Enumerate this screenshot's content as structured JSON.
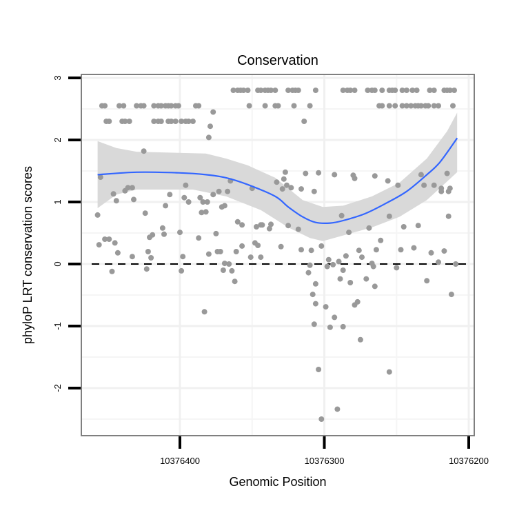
{
  "chart_data": {
    "type": "scatter",
    "title": "Conservation",
    "xlabel": "Genomic Position",
    "ylabel": "phyloP LRT conservation scores",
    "x_reversed": true,
    "xlim": [
      10376200,
      10376460
    ],
    "ylim": [
      -2.6,
      3.05
    ],
    "x_ticks": [
      10376400,
      10376300,
      10376200
    ],
    "x_tick_labels": [
      "10376400",
      "10376300",
      "10376200"
    ],
    "y_ticks": [
      3,
      2,
      1,
      0,
      -1,
      -2
    ],
    "y_tick_labels": [
      "3",
      "2",
      "1",
      "0",
      "-1",
      "-2"
    ],
    "reference_line": 0,
    "grid": true,
    "colors": {
      "points": "#999999",
      "smooth": "#3366ff",
      "ribbon": "#d9d9d9",
      "reference": "#000000",
      "border": "#7f7f7f"
    },
    "points": [
      [
        10376363,
        2.8
      ],
      [
        10376360,
        2.8
      ],
      [
        10376358,
        2.8
      ],
      [
        10376356,
        2.8
      ],
      [
        10376353,
        2.8
      ],
      [
        10376346,
        2.8
      ],
      [
        10376344,
        2.8
      ],
      [
        10376341,
        2.8
      ],
      [
        10376339,
        2.8
      ],
      [
        10376337,
        2.8
      ],
      [
        10376334,
        2.8
      ],
      [
        10376325,
        2.8
      ],
      [
        10376322,
        2.8
      ],
      [
        10376320,
        2.8
      ],
      [
        10376318,
        2.8
      ],
      [
        10376306,
        2.8
      ],
      [
        10376287,
        2.8
      ],
      [
        10376284,
        2.8
      ],
      [
        10376282,
        2.8
      ],
      [
        10376279,
        2.8
      ],
      [
        10376270,
        2.8
      ],
      [
        10376267,
        2.8
      ],
      [
        10376265,
        2.8
      ],
      [
        10376260,
        2.8
      ],
      [
        10376255,
        2.8
      ],
      [
        10376253,
        2.8
      ],
      [
        10376251,
        2.8
      ],
      [
        10376246,
        2.8
      ],
      [
        10376243,
        2.8
      ],
      [
        10376239,
        2.8
      ],
      [
        10376236,
        2.8
      ],
      [
        10376227,
        2.8
      ],
      [
        10376224,
        2.8
      ],
      [
        10376217,
        2.8
      ],
      [
        10376215,
        2.8
      ],
      [
        10376213,
        2.8
      ],
      [
        10376210,
        2.8
      ],
      [
        10376454,
        2.55
      ],
      [
        10376452,
        2.55
      ],
      [
        10376442,
        2.55
      ],
      [
        10376439,
        2.55
      ],
      [
        10376430,
        2.55
      ],
      [
        10376427,
        2.55
      ],
      [
        10376425,
        2.55
      ],
      [
        10376418,
        2.55
      ],
      [
        10376415,
        2.55
      ],
      [
        10376413,
        2.55
      ],
      [
        10376410,
        2.55
      ],
      [
        10376408,
        2.55
      ],
      [
        10376406,
        2.55
      ],
      [
        10376403,
        2.55
      ],
      [
        10376401,
        2.55
      ],
      [
        10376389,
        2.55
      ],
      [
        10376387,
        2.55
      ],
      [
        10376352,
        2.55
      ],
      [
        10376341,
        2.55
      ],
      [
        10376334,
        2.55
      ],
      [
        10376332,
        2.55
      ],
      [
        10376321,
        2.55
      ],
      [
        10376310,
        2.55
      ],
      [
        10376262,
        2.55
      ],
      [
        10376260,
        2.55
      ],
      [
        10376255,
        2.55
      ],
      [
        10376251,
        2.55
      ],
      [
        10376246,
        2.55
      ],
      [
        10376243,
        2.55
      ],
      [
        10376240,
        2.55
      ],
      [
        10376237,
        2.55
      ],
      [
        10376235,
        2.55
      ],
      [
        10376233,
        2.55
      ],
      [
        10376230,
        2.55
      ],
      [
        10376228,
        2.55
      ],
      [
        10376224,
        2.55
      ],
      [
        10376221,
        2.55
      ],
      [
        10376211,
        2.55
      ],
      [
        10376451,
        2.3
      ],
      [
        10376449,
        2.3
      ],
      [
        10376440,
        2.3
      ],
      [
        10376438,
        2.3
      ],
      [
        10376435,
        2.3
      ],
      [
        10376418,
        2.3
      ],
      [
        10376415,
        2.3
      ],
      [
        10376413,
        2.3
      ],
      [
        10376408,
        2.3
      ],
      [
        10376406,
        2.3
      ],
      [
        10376403,
        2.3
      ],
      [
        10376399,
        2.3
      ],
      [
        10376396,
        2.3
      ],
      [
        10376394,
        2.3
      ],
      [
        10376391,
        2.3
      ],
      [
        10376314,
        2.3
      ],
      [
        10376377,
        2.45
      ],
      [
        10376379,
        2.22
      ],
      [
        10376380,
        2.04
      ],
      [
        10376425,
        1.82
      ],
      [
        10376457,
        0.79
      ],
      [
        10376455,
        1.4
      ],
      [
        10376456,
        0.31
      ],
      [
        10376452,
        0.4
      ],
      [
        10376449,
        0.4
      ],
      [
        10376445,
        0.34
      ],
      [
        10376446,
        1.13
      ],
      [
        10376444,
        1.02
      ],
      [
        10376443,
        0.18
      ],
      [
        10376447,
        -0.12
      ],
      [
        10376438,
        1.18
      ],
      [
        10376436,
        1.23
      ],
      [
        10376433,
        1.23
      ],
      [
        10376432,
        1.04
      ],
      [
        10376433,
        0.12
      ],
      [
        10376424,
        0.82
      ],
      [
        10376423,
        -0.08
      ],
      [
        10376422,
        0.2
      ],
      [
        10376420,
        0.1
      ],
      [
        10376421,
        0.43
      ],
      [
        10376419,
        0.47
      ],
      [
        10376412,
        0.58
      ],
      [
        10376411,
        0.48
      ],
      [
        10376410,
        0.94
      ],
      [
        10376407,
        1.12
      ],
      [
        10376400,
        0.51
      ],
      [
        10376399,
        -0.11
      ],
      [
        10376398,
        0.12
      ],
      [
        10376396,
        1.27
      ],
      [
        10376397,
        1.07
      ],
      [
        10376394,
        1.0
      ],
      [
        10376387,
        0.42
      ],
      [
        10376386,
        1.07
      ],
      [
        10376384,
        1.0
      ],
      [
        10376381,
        1.0
      ],
      [
        10376385,
        0.83
      ],
      [
        10376382,
        0.84
      ],
      [
        10376380,
        0.16
      ],
      [
        10376375,
        0.49
      ],
      [
        10376377,
        1.12
      ],
      [
        10376373,
        1.17
      ],
      [
        10376374,
        0.2
      ],
      [
        10376372,
        0.2
      ],
      [
        10376371,
        0.92
      ],
      [
        10376369,
        0.94
      ],
      [
        10376367,
        1.17
      ],
      [
        10376365,
        1.34
      ],
      [
        10376369,
        0.01
      ],
      [
        10376366,
        0.0
      ],
      [
        10376370,
        -0.1
      ],
      [
        10376364,
        -0.11
      ],
      [
        10376362,
        -0.28
      ],
      [
        10376361,
        0.2
      ],
      [
        10376357,
        0.29
      ],
      [
        10376360,
        0.68
      ],
      [
        10376357,
        0.63
      ],
      [
        10376350,
        1.22
      ],
      [
        10376351,
        0.11
      ],
      [
        10376348,
        0.34
      ],
      [
        10376346,
        0.3
      ],
      [
        10376344,
        0.11
      ],
      [
        10376347,
        0.6
      ],
      [
        10376344,
        0.63
      ],
      [
        10376337,
        0.64
      ],
      [
        10376338,
        0.57
      ],
      [
        10376343,
        0.63
      ],
      [
        10376383,
        -0.77
      ],
      [
        10376327,
        1.48
      ],
      [
        10376328,
        1.37
      ],
      [
        10376333,
        1.32
      ],
      [
        10376329,
        1.21
      ],
      [
        10376326,
        1.27
      ],
      [
        10376323,
        1.23
      ],
      [
        10376316,
        1.21
      ],
      [
        10376307,
        1.17
      ],
      [
        10376313,
        1.46
      ],
      [
        10376304,
        1.47
      ],
      [
        10376293,
        1.44
      ],
      [
        10376280,
        1.43
      ],
      [
        10376279,
        1.38
      ],
      [
        10376265,
        1.42
      ],
      [
        10376256,
        1.34
      ],
      [
        10376249,
        1.27
      ],
      [
        10376233,
        1.44
      ],
      [
        10376231,
        1.27
      ],
      [
        10376224,
        1.27
      ],
      [
        10376219,
        1.22
      ],
      [
        10376219,
        1.17
      ],
      [
        10376213,
        1.22
      ],
      [
        10376214,
        1.17
      ],
      [
        10376215,
        1.46
      ],
      [
        10376214,
        0.77
      ],
      [
        10376235,
        0.62
      ],
      [
        10376245,
        0.6
      ],
      [
        10376255,
        0.77
      ],
      [
        10376269,
        0.58
      ],
      [
        10376283,
        0.51
      ],
      [
        10376288,
        0.78
      ],
      [
        10376261,
        0.38
      ],
      [
        10376264,
        0.23
      ],
      [
        10376247,
        0.23
      ],
      [
        10376238,
        0.26
      ],
      [
        10376226,
        0.18
      ],
      [
        10376217,
        0.21
      ],
      [
        10376221,
        0.03
      ],
      [
        10376209,
        0.0
      ],
      [
        10376229,
        -0.27
      ],
      [
        10376250,
        -0.06
      ],
      [
        10376266,
        -0.04
      ],
      [
        10376267,
        0.01
      ],
      [
        10376274,
        0.11
      ],
      [
        10376276,
        0.22
      ],
      [
        10376285,
        0.13
      ],
      [
        10376287,
        -0.1
      ],
      [
        10376289,
        -0.24
      ],
      [
        10376271,
        -0.24
      ],
      [
        10376290,
        0.04
      ],
      [
        10376294,
        -0.01
      ],
      [
        10376297,
        0.07
      ],
      [
        10376298,
        -0.04
      ],
      [
        10376302,
        0.29
      ],
      [
        10376309,
        0.22
      ],
      [
        10376316,
        0.23
      ],
      [
        10376330,
        0.28
      ],
      [
        10376311,
        -0.14
      ],
      [
        10376310,
        -0.02
      ],
      [
        10376318,
        0.56
      ],
      [
        10376325,
        0.62
      ],
      [
        10376308,
        -0.49
      ],
      [
        10376306,
        -0.64
      ],
      [
        10376307,
        -0.97
      ],
      [
        10376304,
        -1.7
      ],
      [
        10376302,
        -2.5
      ],
      [
        10376291,
        -2.34
      ],
      [
        10376299,
        -0.69
      ],
      [
        10376296,
        -1.02
      ],
      [
        10376293,
        -0.86
      ],
      [
        10376287,
        -1.01
      ],
      [
        10376279,
        -0.66
      ],
      [
        10376277,
        -0.61
      ],
      [
        10376275,
        -1.22
      ],
      [
        10376255,
        -1.74
      ],
      [
        10376212,
        -0.49
      ],
      [
        10376265,
        -0.36
      ],
      [
        10376306,
        -0.32
      ],
      [
        10376282,
        -0.3
      ]
    ],
    "smooth": {
      "x": [
        10376457,
        10376430,
        10376401,
        10376382,
        10376368,
        10376353,
        10376334,
        10376325,
        10376315,
        10376306,
        10376296,
        10376287,
        10376272,
        10376258,
        10376243,
        10376229,
        10376220,
        10376208
      ],
      "y": [
        1.44,
        1.48,
        1.47,
        1.44,
        1.39,
        1.28,
        1.09,
        0.92,
        0.76,
        0.67,
        0.66,
        0.7,
        0.81,
        0.97,
        1.17,
        1.44,
        1.64,
        2.03
      ]
    },
    "ribbon_upper": {
      "x": [
        10376457,
        10376444,
        10376430,
        10376382,
        10376368,
        10376353,
        10376334,
        10376315,
        10376301,
        10376287,
        10376267,
        10376248,
        10376229,
        10376215,
        10376208
      ],
      "y": [
        1.98,
        1.87,
        1.81,
        1.78,
        1.7,
        1.59,
        1.39,
        1.03,
        0.92,
        0.94,
        1.09,
        1.31,
        1.7,
        2.14,
        2.44
      ]
    },
    "ribbon_lower": {
      "x": [
        10376457,
        10376444,
        10376430,
        10376391,
        10376368,
        10376344,
        10376325,
        10376310,
        10376301,
        10376287,
        10376267,
        10376248,
        10376229,
        10376208
      ],
      "y": [
        0.9,
        1.12,
        1.2,
        1.2,
        1.09,
        0.87,
        0.59,
        0.42,
        0.37,
        0.46,
        0.59,
        0.76,
        1.03,
        1.48
      ]
    }
  }
}
